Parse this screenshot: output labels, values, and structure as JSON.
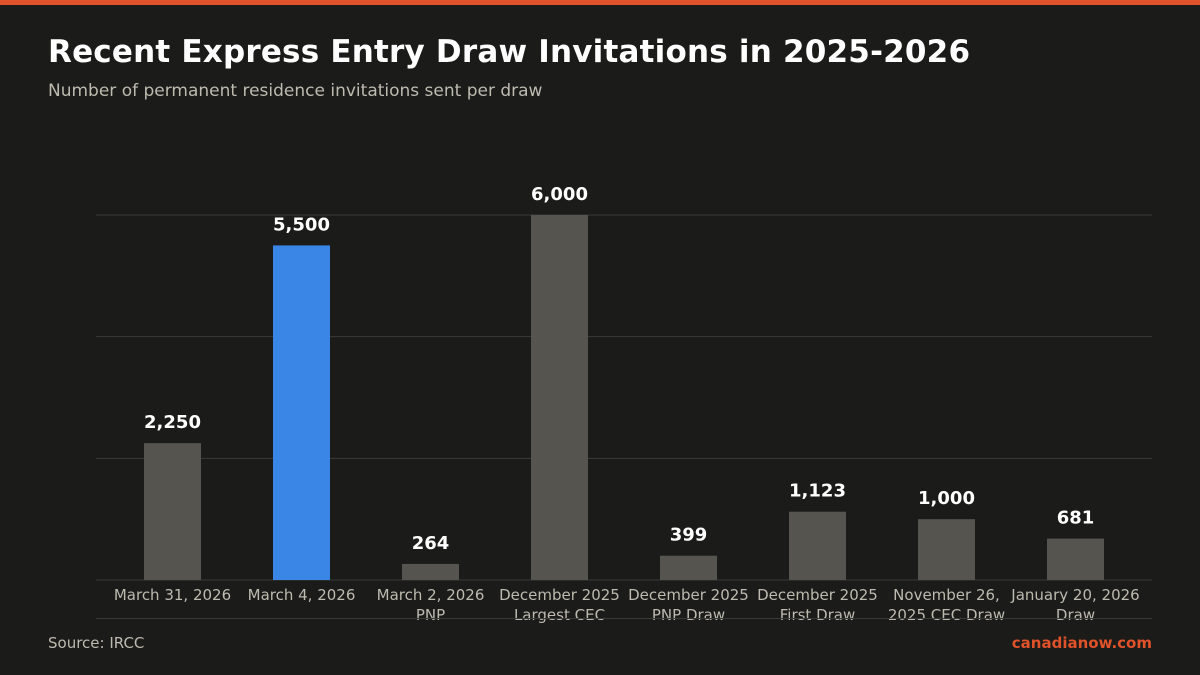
{
  "header": {
    "title": "Recent Express Entry Draw Invitations in 2025-2026",
    "subtitle": "Number of permanent residence invitations sent per draw"
  },
  "footer": {
    "source": "Source: IRCC",
    "brand": "canadianow.com"
  },
  "colors": {
    "accent": "#e0522a",
    "bar_default": "#55544f",
    "bar_highlight": "#3a86e6",
    "background": "#1b1b19"
  },
  "chart_data": {
    "type": "bar",
    "categories": [
      [
        "March 31, 2026"
      ],
      [
        "March 4, 2026"
      ],
      [
        "March 2, 2026",
        "PNP"
      ],
      [
        "December 2025",
        "Largest CEC"
      ],
      [
        "December 2025",
        "PNP Draw"
      ],
      [
        "December 2025",
        "First Draw"
      ],
      [
        "November 26,",
        "2025 CEC Draw"
      ],
      [
        "January 20, 2026",
        "Draw"
      ]
    ],
    "values": [
      2250,
      5500,
      264,
      6000,
      399,
      1123,
      1000,
      681
    ],
    "value_labels": [
      "2,250",
      "5,500",
      "264",
      "6,000",
      "399",
      "1,123",
      "1,000",
      "681"
    ],
    "highlight_index": 1,
    "ylim": [
      0,
      6000
    ],
    "grid": true,
    "legend": "none"
  }
}
